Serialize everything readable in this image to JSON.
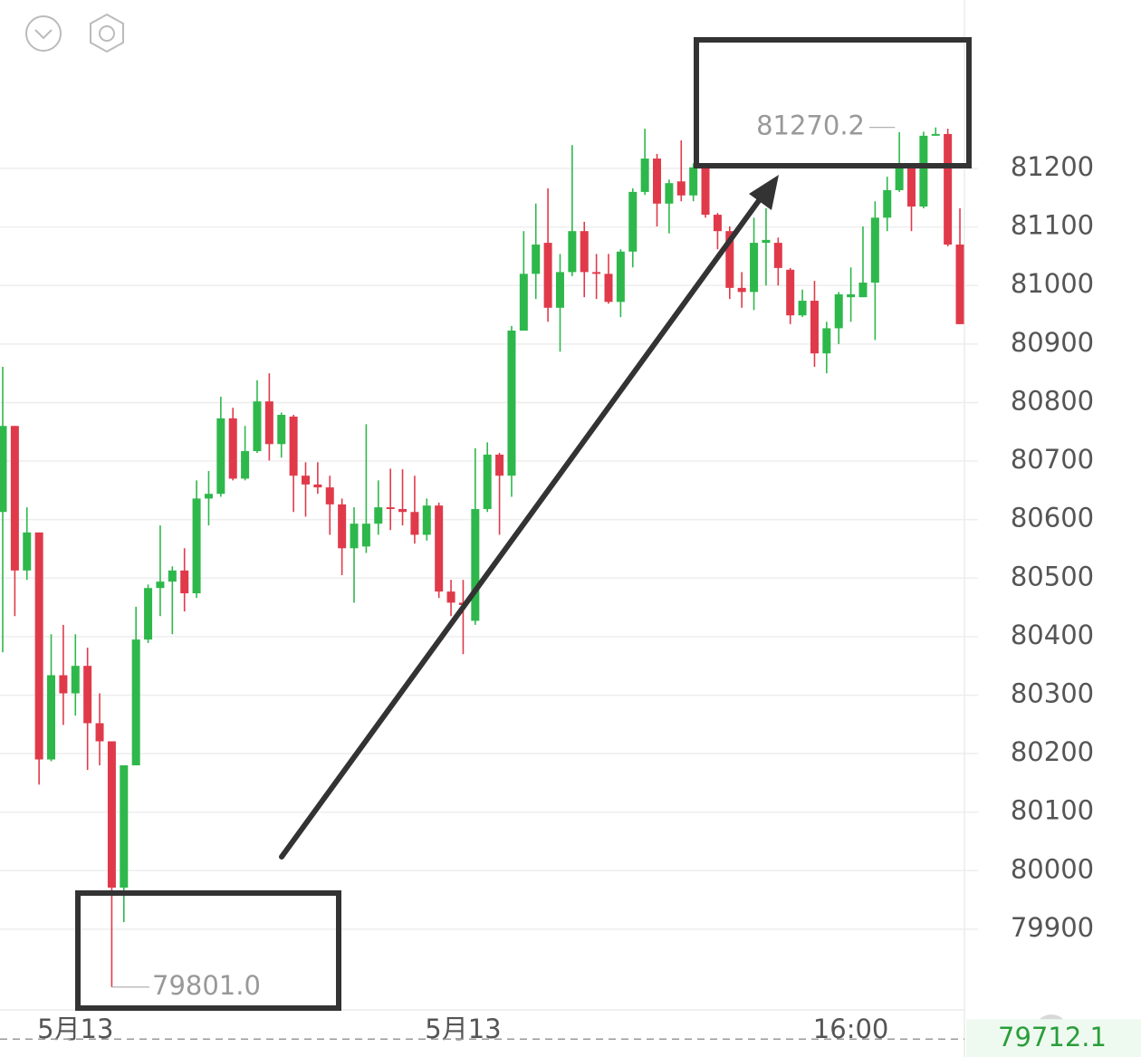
{
  "chart_data": {
    "type": "candlestick",
    "up_color": "#2eb84b",
    "down_color": "#e03a4a",
    "grid": true,
    "ylim": [
      79762,
      81488
    ],
    "yticks": [
      79900,
      80000,
      80100,
      80200,
      80300,
      80400,
      80500,
      80600,
      80700,
      80800,
      80900,
      81000,
      81100,
      81200
    ],
    "categories": [
      null,
      null,
      null,
      null,
      null,
      null,
      "5月13",
      null,
      null,
      null,
      null,
      null,
      null,
      null,
      null,
      null,
      null,
      null,
      null,
      null,
      null,
      null,
      null,
      null,
      null,
      null,
      null,
      null,
      null,
      null,
      null,
      null,
      null,
      null,
      null,
      null,
      null,
      null,
      "5月13",
      null,
      null,
      null,
      null,
      null,
      null,
      null,
      null,
      null,
      null,
      null,
      null,
      null,
      null,
      null,
      null,
      null,
      null,
      null,
      null,
      null,
      null,
      null,
      null,
      null,
      null,
      null,
      null,
      null,
      null,
      null,
      "16:00",
      null,
      null,
      null,
      null,
      null,
      null,
      null,
      null,
      null
    ],
    "open": [
      80613,
      80760,
      80513,
      80578,
      80190,
      80334,
      80303,
      80350,
      80252,
      80221,
      79971,
      80180,
      80395,
      80483,
      80494,
      80513,
      80474,
      80636,
      80644,
      80773,
      80670,
      80717,
      80802,
      80729,
      80776,
      80675,
      80660,
      80655,
      80626,
      80551,
      80554,
      80593,
      80621,
      80618,
      80613,
      80574,
      80624,
      80477,
      80458,
      80427,
      80618,
      80711,
      80675,
      80923,
      81020,
      81073,
      80962,
      81023,
      81093,
      81023,
      81020,
      80972,
      81058,
      81160,
      81217,
      81140,
      81178,
      81154,
      81202,
      81121,
      81093,
      80996,
      80989,
      81073,
      81073,
      81027,
      80949,
      80974,
      80884,
      80927,
      80980,
      80980,
      81005,
      81116,
      81163,
      81205,
      81135,
      81256,
      81259,
      81070
    ],
    "high": [
      80861,
      80760,
      80621,
      80578,
      80404,
      80420,
      80404,
      80381,
      80303,
      80221,
      80180,
      80451,
      80489,
      80590,
      80520,
      80551,
      80667,
      80683,
      80810,
      80791,
      80760,
      80838,
      80850,
      80783,
      80779,
      80698,
      80698,
      80675,
      80636,
      80621,
      80763,
      80667,
      80687,
      80686,
      80675,
      80636,
      80629,
      80497,
      80497,
      80722,
      80732,
      80714,
      80931,
      81093,
      81140,
      81166,
      81054,
      81240,
      81109,
      81054,
      81054,
      81062,
      81166,
      81268,
      81225,
      81181,
      81248,
      81209,
      81209,
      81124,
      81101,
      81023,
      81116,
      81132,
      81082,
      81030,
      80993,
      81008,
      80938,
      80989,
      81031,
      81101,
      81144,
      81186,
      81262,
      81209,
      81263,
      81270.2,
      81268,
      81132
    ],
    "low": [
      80373,
      80435,
      80497,
      80147,
      80187,
      80249,
      80265,
      80172,
      80180,
      79801,
      79912,
      80180,
      80389,
      80435,
      80404,
      80443,
      80466,
      80590,
      80639,
      80667,
      80667,
      80714,
      80701,
      80706,
      80613,
      80605,
      80644,
      80574,
      80505,
      80458,
      80543,
      80574,
      80582,
      80590,
      80559,
      80564,
      80466,
      80435,
      80370,
      80420,
      80613,
      80574,
      80639,
      80923,
      80977,
      80938,
      80887,
      81016,
      80980,
      80977,
      80969,
      80946,
      81031,
      81155,
      81101,
      81089,
      81144,
      81144,
      81116,
      81062,
      80977,
      80962,
      80958,
      81000,
      81000,
      80934,
      80946,
      80861,
      80850,
      80900,
      80938,
      80980,
      80907,
      81093,
      81160,
      81093,
      81132,
      81256,
      81067,
      80934
    ],
    "close": [
      80760,
      80513,
      80578,
      80190,
      80334,
      80303,
      80350,
      80252,
      80221,
      79971,
      80180,
      80395,
      80483,
      80494,
      80513,
      80474,
      80636,
      80644,
      80773,
      80670,
      80717,
      80802,
      80729,
      80779,
      80675,
      80660,
      80655,
      80626,
      80551,
      80593,
      80593,
      80621,
      80618,
      80613,
      80574,
      80624,
      80477,
      80458,
      80454,
      80618,
      80711,
      80675,
      80923,
      81020,
      81070,
      80962,
      81023,
      81093,
      81023,
      81020,
      80972,
      81058,
      81160,
      81217,
      81140,
      81175,
      81154,
      81202,
      81121,
      81093,
      80996,
      80989,
      81073,
      81078,
      81030,
      80949,
      80974,
      80884,
      80927,
      80985,
      80985,
      81005,
      81116,
      81163,
      81205,
      81135,
      81256,
      81259,
      81070,
      80934
    ],
    "high_marker": 81270.2,
    "low_marker": {
      "value": 79801,
      "label": "79801.0"
    },
    "last_price": 79712.1
  }
}
